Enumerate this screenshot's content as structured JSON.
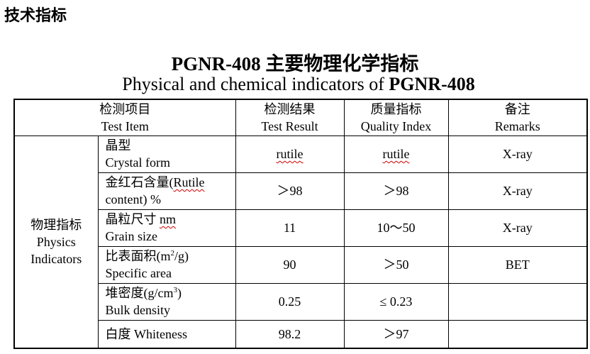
{
  "heading": "技术指标",
  "title_cn": "PGNR-408 主要物理化学指标",
  "title_en_prefix": "Physical and chemical indicators of ",
  "title_en_product": "PGNR-408",
  "header": {
    "test_item_cn": "检测项目",
    "test_item_en": "Test Item",
    "result_cn": "检测结果",
    "result_en": "Test Result",
    "quality_cn": "质量指标",
    "quality_en": "Quality Index",
    "remarks_cn": "备注",
    "remarks_en": "Remarks"
  },
  "group": {
    "cn": "物理指标",
    "en1": "Physics",
    "en2": "Indicators"
  },
  "rows": [
    {
      "cn": "晶型",
      "en": "Crystal form",
      "result": "rutile",
      "quality": "rutile",
      "remarks": "X-ray"
    },
    {
      "cn": "金红石含量(",
      "cn_word": "Rutile",
      "en": "content) %",
      "result": "＞98",
      "quality": "＞98",
      "remarks": "X-ray"
    },
    {
      "cn": "晶粒尺寸 ",
      "cn_word": "nm",
      "en": "Grain size",
      "result": "11",
      "quality": "10～50",
      "remarks": "X-ray"
    },
    {
      "cn": "比表面积(m",
      "sup": "2",
      "cn_tail": "/g)",
      "en": "Specific area",
      "result": "90",
      "quality": "＞50",
      "remarks": "BET"
    },
    {
      "cn": "堆密度(g/cm",
      "sup": "3",
      "cn_tail": ")",
      "en": "Bulk density",
      "result": "0.25",
      "quality": "≤ 0.23",
      "remarks": ""
    },
    {
      "cn": "白度 Whiteness",
      "result": "98.2",
      "quality": "＞97",
      "remarks": ""
    }
  ]
}
